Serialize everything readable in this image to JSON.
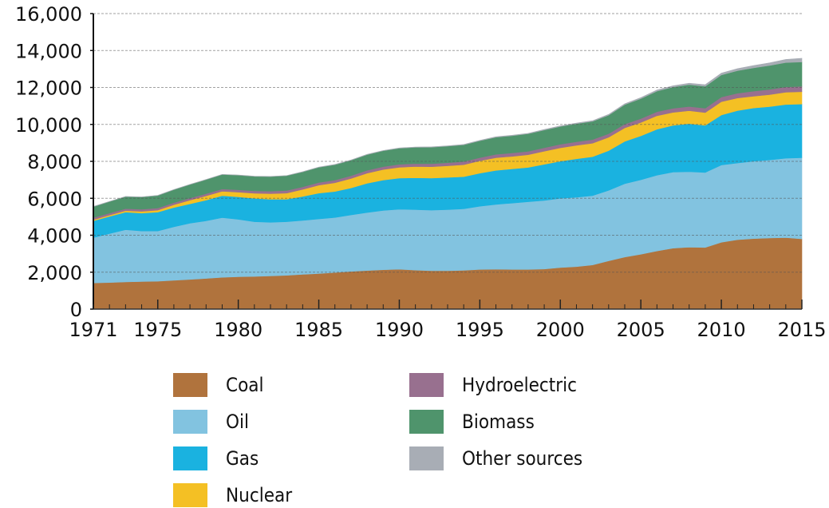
{
  "chart_data": {
    "type": "area",
    "stacked": true,
    "title": "",
    "xlabel": "",
    "ylabel": "",
    "ylim": [
      0,
      16000
    ],
    "xlim": [
      1971,
      2015
    ],
    "yticks": [
      0,
      2000,
      4000,
      6000,
      8000,
      10000,
      12000,
      14000,
      16000
    ],
    "ytick_labels": [
      "0",
      "2,000",
      "4,000",
      "6,000",
      "8,000",
      "10,000",
      "12,000",
      "14,000",
      "16,000"
    ],
    "xticks": [
      1971,
      1975,
      1980,
      1985,
      1990,
      1995,
      2000,
      2005,
      2010,
      2015
    ],
    "xtick_labels": [
      "1971",
      "1975",
      "1980",
      "1985",
      "1990",
      "1995",
      "2000",
      "2005",
      "2010",
      "2015"
    ],
    "grid": "horizontal-dashed",
    "legend_position": "bottom",
    "x": [
      1971,
      1972,
      1973,
      1974,
      1975,
      1976,
      1977,
      1978,
      1979,
      1980,
      1981,
      1982,
      1983,
      1984,
      1985,
      1986,
      1987,
      1988,
      1989,
      1990,
      1991,
      1992,
      1993,
      1994,
      1995,
      1996,
      1997,
      1998,
      1999,
      2000,
      2001,
      2002,
      2003,
      2004,
      2005,
      2006,
      2007,
      2008,
      2009,
      2010,
      2011,
      2012,
      2013,
      2014,
      2015
    ],
    "series": [
      {
        "name": "Coal",
        "color": "#B0733D",
        "values": [
          1420,
          1440,
          1470,
          1490,
          1510,
          1560,
          1610,
          1660,
          1720,
          1750,
          1770,
          1800,
          1830,
          1880,
          1930,
          1980,
          2040,
          2090,
          2130,
          2160,
          2110,
          2080,
          2080,
          2100,
          2150,
          2160,
          2150,
          2150,
          2170,
          2250,
          2300,
          2390,
          2610,
          2820,
          2970,
          3150,
          3300,
          3350,
          3340,
          3620,
          3760,
          3820,
          3850,
          3870,
          3800
        ]
      },
      {
        "name": "Oil",
        "color": "#82C3E0",
        "values": [
          2450,
          2650,
          2830,
          2740,
          2720,
          2900,
          3040,
          3120,
          3230,
          3110,
          2960,
          2900,
          2900,
          2920,
          2950,
          2980,
          3060,
          3140,
          3210,
          3250,
          3280,
          3280,
          3310,
          3330,
          3420,
          3510,
          3590,
          3660,
          3710,
          3750,
          3760,
          3750,
          3820,
          3970,
          4030,
          4100,
          4120,
          4090,
          4060,
          4180,
          4150,
          4190,
          4230,
          4300,
          4400
        ]
      },
      {
        "name": "Gas",
        "color": "#1AB2E0",
        "values": [
          910,
          930,
          950,
          970,
          1020,
          1040,
          1050,
          1120,
          1190,
          1220,
          1270,
          1250,
          1220,
          1300,
          1400,
          1410,
          1460,
          1580,
          1650,
          1680,
          1720,
          1730,
          1740,
          1740,
          1790,
          1840,
          1850,
          1860,
          1960,
          2010,
          2080,
          2110,
          2150,
          2290,
          2380,
          2490,
          2530,
          2600,
          2550,
          2710,
          2840,
          2880,
          2880,
          2910,
          2900
        ]
      },
      {
        "name": "Nuclear",
        "color": "#F4C024",
        "values": [
          60,
          70,
          80,
          95,
          110,
          150,
          200,
          230,
          240,
          250,
          270,
          300,
          330,
          380,
          430,
          470,
          510,
          550,
          570,
          590,
          610,
          620,
          630,
          650,
          670,
          690,
          680,
          690,
          710,
          720,
          730,
          730,
          720,
          730,
          720,
          730,
          700,
          700,
          690,
          720,
          680,
          640,
          650,
          660,
          670
        ]
      },
      {
        "name": "Hydroelectric",
        "color": "#98708F",
        "values": [
          110,
          110,
          110,
          110,
          110,
          115,
          115,
          120,
          125,
          130,
          135,
          135,
          140,
          140,
          145,
          150,
          150,
          155,
          155,
          160,
          160,
          165,
          165,
          170,
          175,
          180,
          185,
          185,
          190,
          195,
          195,
          200,
          200,
          210,
          215,
          220,
          220,
          230,
          240,
          250,
          260,
          270,
          280,
          290,
          290
        ]
      },
      {
        "name": "Biomass",
        "color": "#4F946C",
        "values": [
          600,
          620,
          650,
          660,
          680,
          700,
          730,
          760,
          780,
          790,
          780,
          790,
          800,
          810,
          820,
          830,
          840,
          850,
          860,
          870,
          880,
          890,
          900,
          905,
          910,
          925,
          935,
          945,
          955,
          965,
          975,
          985,
          1000,
          1050,
          1080,
          1110,
          1150,
          1180,
          1180,
          1200,
          1220,
          1260,
          1300,
          1320,
          1320
        ]
      },
      {
        "name": "Other sources",
        "color": "#A8ADB5",
        "values": [
          10,
          10,
          10,
          10,
          10,
          10,
          10,
          10,
          10,
          10,
          10,
          10,
          12,
          12,
          12,
          15,
          15,
          15,
          15,
          18,
          18,
          20,
          20,
          20,
          22,
          25,
          25,
          28,
          30,
          32,
          35,
          38,
          42,
          50,
          55,
          60,
          70,
          80,
          90,
          100,
          110,
          125,
          140,
          170,
          200
        ]
      }
    ]
  },
  "legend": {
    "items": [
      {
        "label": "Coal",
        "color": "#B0733D"
      },
      {
        "label": "Oil",
        "color": "#82C3E0"
      },
      {
        "label": "Gas",
        "color": "#1AB2E0"
      },
      {
        "label": "Nuclear",
        "color": "#F4C024"
      },
      {
        "label": "Hydroelectric",
        "color": "#98708F"
      },
      {
        "label": "Biomass",
        "color": "#4F946C"
      },
      {
        "label": "Other sources",
        "color": "#A8ADB5"
      }
    ]
  }
}
